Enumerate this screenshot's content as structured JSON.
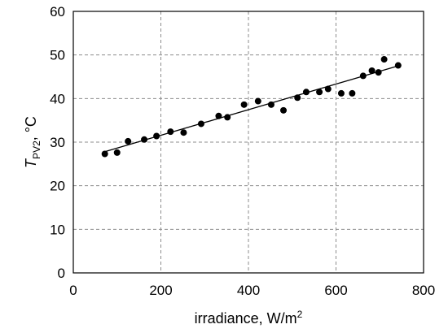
{
  "chart_data": {
    "type": "scatter",
    "title": "",
    "xlabel": "irradiance, W/m",
    "xlabel_sup": "2",
    "ylabel": "T",
    "ylabel_sub": "PV2",
    "ylabel_unit": ", °C",
    "xlim": [
      0,
      800
    ],
    "ylim": [
      0,
      60
    ],
    "xticks": [
      "0",
      "200",
      "400",
      "600",
      "800"
    ],
    "yticks": [
      "0",
      "10",
      "20",
      "30",
      "40",
      "50",
      "60"
    ],
    "grid": true,
    "legend": "none",
    "points": [
      {
        "x": 72,
        "y": 27.3
      },
      {
        "x": 100,
        "y": 27.6
      },
      {
        "x": 125,
        "y": 30.2
      },
      {
        "x": 162,
        "y": 30.6
      },
      {
        "x": 190,
        "y": 31.4
      },
      {
        "x": 222,
        "y": 32.4
      },
      {
        "x": 252,
        "y": 32.2
      },
      {
        "x": 292,
        "y": 34.2
      },
      {
        "x": 332,
        "y": 36.0
      },
      {
        "x": 352,
        "y": 35.7
      },
      {
        "x": 390,
        "y": 38.6
      },
      {
        "x": 422,
        "y": 39.4
      },
      {
        "x": 452,
        "y": 38.6
      },
      {
        "x": 480,
        "y": 37.3
      },
      {
        "x": 512,
        "y": 40.2
      },
      {
        "x": 532,
        "y": 41.5
      },
      {
        "x": 562,
        "y": 41.5
      },
      {
        "x": 582,
        "y": 42.2
      },
      {
        "x": 612,
        "y": 41.2
      },
      {
        "x": 637,
        "y": 41.2
      },
      {
        "x": 662,
        "y": 45.2
      },
      {
        "x": 682,
        "y": 46.4
      },
      {
        "x": 697,
        "y": 46.0
      },
      {
        "x": 710,
        "y": 49.0
      },
      {
        "x": 742,
        "y": 47.6
      }
    ],
    "trendline": {
      "x": [
        72,
        742
      ],
      "y": [
        27.8,
        47.5
      ]
    },
    "colors": {
      "marker": "#000000",
      "trendline": "#000000",
      "grid": "#8c8c8c",
      "frame": "#000000"
    }
  }
}
